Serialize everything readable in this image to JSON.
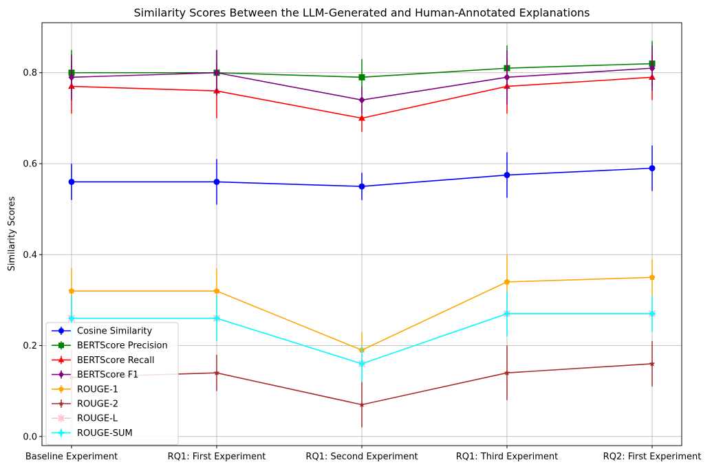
{
  "chart_data": {
    "type": "line",
    "title": "Similarity Scores Between the LLM-Generated and Human-Annotated Explanations",
    "xlabel": "",
    "ylabel": "Similarity Scores",
    "categories": [
      "Baseline Experiment",
      "RQ1: First Experiment",
      "RQ1: Second Experiment",
      "RQ1: Third Experiment",
      "RQ2: First Experiment"
    ],
    "ylim": [
      -0.02,
      0.91
    ],
    "yticks": [
      0.0,
      0.2,
      0.4,
      0.6,
      0.8
    ],
    "ytick_labels": [
      "0.0",
      "0.2",
      "0.4",
      "0.6",
      "0.8"
    ],
    "grid": true,
    "legend_position": "lower-left",
    "series": [
      {
        "name": "Cosine Similarity",
        "color": "#0000ff",
        "marker": "circle",
        "values": [
          0.56,
          0.56,
          0.55,
          0.575,
          0.59
        ],
        "errors": [
          0.04,
          0.05,
          0.03,
          0.05,
          0.05
        ]
      },
      {
        "name": "BERTScore Precision",
        "color": "#008000",
        "marker": "square",
        "values": [
          0.8,
          0.8,
          0.79,
          0.81,
          0.82
        ],
        "errors": [
          0.05,
          0.05,
          0.04,
          0.05,
          0.05
        ]
      },
      {
        "name": "BERTScore Recall",
        "color": "#ff0000",
        "marker": "triangle",
        "values": [
          0.77,
          0.76,
          0.7,
          0.77,
          0.79
        ],
        "errors": [
          0.06,
          0.06,
          0.03,
          0.06,
          0.05
        ]
      },
      {
        "name": "BERTScore F1",
        "color": "#800080",
        "marker": "diamond",
        "values": [
          0.79,
          0.8,
          0.74,
          0.79,
          0.81
        ],
        "errors": [
          0.05,
          0.05,
          0.03,
          0.06,
          0.05
        ]
      },
      {
        "name": "ROUGE-1",
        "color": "#ffa500",
        "marker": "pentagon",
        "values": [
          0.32,
          0.32,
          0.19,
          0.34,
          0.35
        ],
        "errors": [
          0.05,
          0.05,
          0.04,
          0.06,
          0.04
        ]
      },
      {
        "name": "ROUGE-2",
        "color": "#a52a2a",
        "marker": "star",
        "values": [
          0.13,
          0.14,
          0.07,
          0.14,
          0.16
        ],
        "errors": [
          0.06,
          0.04,
          0.05,
          0.06,
          0.05
        ]
      },
      {
        "name": "ROUGE-L",
        "color": "#ffc0cb",
        "marker": "x",
        "values": [
          0.26,
          0.26,
          0.16,
          0.27,
          0.27
        ],
        "errors": [
          0.04,
          0.05,
          0.04,
          0.05,
          0.04
        ]
      },
      {
        "name": "ROUGE-SUM",
        "color": "#00ffff",
        "marker": "plus",
        "values": [
          0.26,
          0.26,
          0.16,
          0.27,
          0.27
        ],
        "errors": [
          0.05,
          0.05,
          0.04,
          0.05,
          0.04
        ]
      }
    ]
  }
}
